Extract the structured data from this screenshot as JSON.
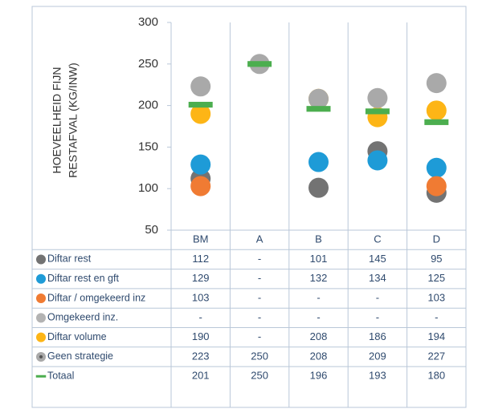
{
  "chart_data": {
    "type": "dot",
    "y_label": [
      "HOEVEELHEID FIJN",
      "RESTAFVAL (KG/INW)"
    ],
    "categories": [
      "BM",
      "A",
      "B",
      "C",
      "D"
    ],
    "ylim": [
      50,
      300
    ],
    "yticks": [
      50,
      100,
      150,
      200,
      250,
      300
    ],
    "series": [
      {
        "name": "Diftar rest",
        "color": "#737373",
        "marker": "circle",
        "values": [
          112,
          null,
          101,
          145,
          95
        ],
        "value_labels": [
          "112",
          "-",
          "101",
          "145",
          "95"
        ]
      },
      {
        "name": "Diftar rest en gft",
        "color": "#1e9bd7",
        "marker": "circle",
        "values": [
          129,
          null,
          132,
          134,
          125
        ],
        "value_labels": [
          "129",
          "-",
          "132",
          "134",
          "125"
        ]
      },
      {
        "name": "Diftar / omgekeerd inz",
        "color": "#f07b33",
        "marker": "circle",
        "values": [
          103,
          null,
          null,
          null,
          103
        ],
        "value_labels": [
          "103",
          "-",
          "-",
          "-",
          "103"
        ]
      },
      {
        "name": "Omgekeerd inz.",
        "color": "#b3b3b3",
        "marker": "circle",
        "values": [
          null,
          null,
          null,
          null,
          null
        ],
        "value_labels": [
          "-",
          "-",
          "-",
          "-",
          "-"
        ]
      },
      {
        "name": "Diftar volume",
        "color": "#fdb516",
        "marker": "circle",
        "values": [
          190,
          null,
          208,
          186,
          194
        ],
        "value_labels": [
          "190",
          "-",
          "208",
          "186",
          "194"
        ]
      },
      {
        "name": "Geen strategie",
        "color": "#a9a9a9",
        "marker": "dotted-circle",
        "values": [
          223,
          250,
          208,
          209,
          227
        ],
        "value_labels": [
          "223",
          "250",
          "208",
          "209",
          "227"
        ]
      },
      {
        "name": "Totaal",
        "color": "#4cae4f",
        "marker": "dash",
        "values": [
          201,
          250,
          196,
          193,
          180
        ],
        "value_labels": [
          "201",
          "250",
          "196",
          "193",
          "180"
        ]
      }
    ]
  }
}
